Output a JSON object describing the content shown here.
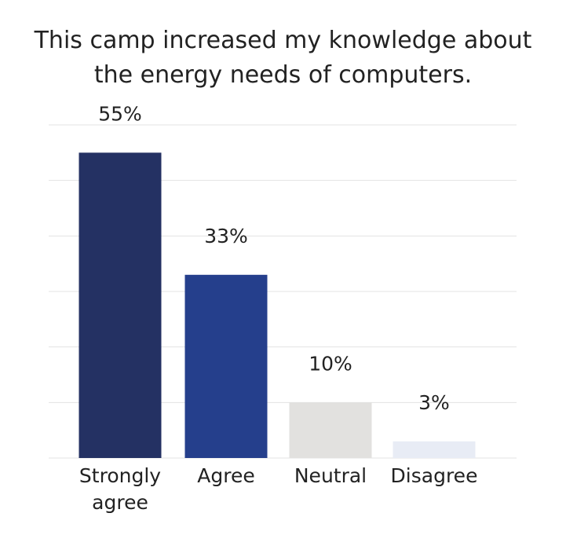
{
  "chart_data": {
    "type": "bar",
    "title_lines": [
      "This camp increased my knowledge about",
      "the energy needs of computers."
    ],
    "categories": [
      [
        "Strongly",
        "agree"
      ],
      [
        "Agree"
      ],
      [
        "Neutral"
      ],
      [
        "Disagree"
      ]
    ],
    "values": [
      55,
      33,
      10,
      3
    ],
    "value_labels": [
      "55%",
      "33%",
      "10%",
      "3%"
    ],
    "colors": [
      "#243163",
      "#253F8C",
      "#E2E1DF",
      "#E8ECF5"
    ],
    "ylim": [
      0,
      60
    ],
    "grid": true,
    "gridline_color": "#e3e3e3",
    "xlabel": "",
    "ylabel": ""
  }
}
